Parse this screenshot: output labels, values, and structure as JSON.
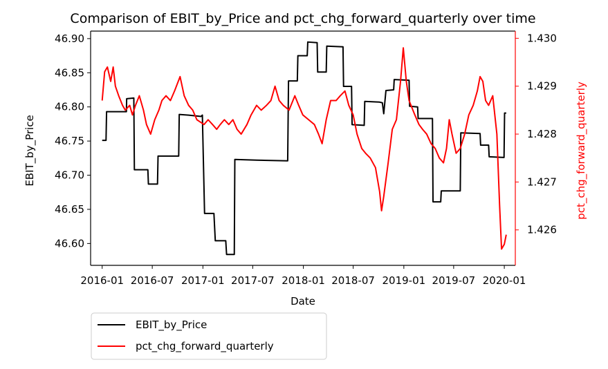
{
  "chart_data": {
    "type": "line",
    "title": "Comparison of EBIT_by_Price and pct_chg_forward_quarterly over time",
    "xlabel": "Date",
    "ylabel_left": "EBIT_by_Price",
    "ylabel_right": "pct_chg_forward_quarterly",
    "x_ticks": [
      "2016-01",
      "2016-07",
      "2017-01",
      "2017-07",
      "2018-01",
      "2018-07",
      "2019-01",
      "2019-07",
      "2020-01"
    ],
    "x_range": [
      "2015-11-20",
      "2020-02-10"
    ],
    "y_left_ticks": [
      "46.60",
      "46.65",
      "46.70",
      "46.75",
      "46.80",
      "46.85",
      "46.90"
    ],
    "y_left_range": [
      46.568,
      46.911
    ],
    "y_right_ticks": [
      "1.426",
      "1.427",
      "1.428",
      "1.429",
      "1.430"
    ],
    "y_right_range": [
      1.42526,
      1.43015
    ],
    "legend": {
      "placement": "bottom-left-outside",
      "entries": [
        "EBIT_by_Price",
        "pct_chg_forward_quarterly"
      ]
    },
    "colors": {
      "series1": "#000000",
      "series2": "#ff0000",
      "axis": "#000000"
    },
    "series": [
      {
        "name": "EBIT_by_Price",
        "axis": "left",
        "color": "#000000",
        "points": [
          [
            "2016-01-01",
            46.751
          ],
          [
            "2016-01-15",
            46.751
          ],
          [
            "2016-01-17",
            46.793
          ],
          [
            "2016-03-15",
            46.793
          ],
          [
            "2016-03-29",
            46.793
          ],
          [
            "2016-03-30",
            46.812
          ],
          [
            "2016-04-25",
            46.813
          ],
          [
            "2016-04-27",
            46.708
          ],
          [
            "2016-06-15",
            46.708
          ],
          [
            "2016-06-17",
            46.687
          ],
          [
            "2016-07-20",
            46.687
          ],
          [
            "2016-07-22",
            46.728
          ],
          [
            "2016-10-05",
            46.728
          ],
          [
            "2016-10-07",
            46.789
          ],
          [
            "2016-11-10",
            46.788
          ],
          [
            "2016-12-25",
            46.786
          ],
          [
            "2016-12-30",
            46.788
          ],
          [
            "2017-01-07",
            46.644
          ],
          [
            "2017-02-10",
            46.644
          ],
          [
            "2017-02-15",
            46.604
          ],
          [
            "2017-03-25",
            46.604
          ],
          [
            "2017-03-28",
            46.584
          ],
          [
            "2017-04-25",
            46.584
          ],
          [
            "2017-04-27",
            46.723
          ],
          [
            "2017-07-15",
            46.722
          ],
          [
            "2017-11-05",
            46.721
          ],
          [
            "2017-11-08",
            46.838
          ],
          [
            "2017-12-10",
            46.838
          ],
          [
            "2017-12-12",
            46.875
          ],
          [
            "2018-01-15",
            46.875
          ],
          [
            "2018-01-17",
            46.895
          ],
          [
            "2018-02-20",
            46.894
          ],
          [
            "2018-02-22",
            46.851
          ],
          [
            "2018-03-25",
            46.851
          ],
          [
            "2018-03-27",
            46.889
          ],
          [
            "2018-05-25",
            46.888
          ],
          [
            "2018-05-27",
            46.83
          ],
          [
            "2018-06-25",
            46.83
          ],
          [
            "2018-06-27",
            46.774
          ],
          [
            "2018-08-10",
            46.773
          ],
          [
            "2018-08-12",
            46.808
          ],
          [
            "2018-10-05",
            46.807
          ],
          [
            "2018-10-15",
            46.806
          ],
          [
            "2018-10-20",
            46.79
          ],
          [
            "2018-10-28",
            46.824
          ],
          [
            "2018-11-25",
            46.825
          ],
          [
            "2018-11-27",
            46.84
          ],
          [
            "2019-01-20",
            46.839
          ],
          [
            "2019-01-22",
            46.801
          ],
          [
            "2019-02-20",
            46.8
          ],
          [
            "2019-02-22",
            46.783
          ],
          [
            "2019-04-15",
            46.783
          ],
          [
            "2019-04-17",
            46.661
          ],
          [
            "2019-05-15",
            46.661
          ],
          [
            "2019-05-17",
            46.677
          ],
          [
            "2019-07-25",
            46.677
          ],
          [
            "2019-07-27",
            46.762
          ],
          [
            "2019-10-05",
            46.761
          ],
          [
            "2019-10-07",
            46.744
          ],
          [
            "2019-11-05",
            46.744
          ],
          [
            "2019-11-07",
            46.727
          ],
          [
            "2019-12-31",
            46.726
          ],
          [
            "2020-01-02",
            46.791
          ],
          [
            "2020-01-08",
            46.791
          ]
        ]
      },
      {
        "name": "pct_chg_forward_quarterly",
        "axis": "right",
        "color": "#ff0000",
        "points": [
          [
            "2016-01-01",
            1.4287
          ],
          [
            "2016-01-10",
            1.4293
          ],
          [
            "2016-01-20",
            1.4294
          ],
          [
            "2016-02-01",
            1.4291
          ],
          [
            "2016-02-10",
            1.4294
          ],
          [
            "2016-02-18",
            1.429
          ],
          [
            "2016-03-01",
            1.4288
          ],
          [
            "2016-03-15",
            1.4286
          ],
          [
            "2016-03-25",
            1.4285
          ],
          [
            "2016-04-10",
            1.4286
          ],
          [
            "2016-04-20",
            1.4284
          ],
          [
            "2016-05-01",
            1.4286
          ],
          [
            "2016-05-15",
            1.4288
          ],
          [
            "2016-05-30",
            1.4285
          ],
          [
            "2016-06-10",
            1.4282
          ],
          [
            "2016-06-25",
            1.428
          ],
          [
            "2016-07-10",
            1.4283
          ],
          [
            "2016-07-25",
            1.4285
          ],
          [
            "2016-08-05",
            1.4287
          ],
          [
            "2016-08-20",
            1.4288
          ],
          [
            "2016-09-05",
            1.4287
          ],
          [
            "2016-09-20",
            1.4289
          ],
          [
            "2016-10-10",
            1.4292
          ],
          [
            "2016-10-25",
            1.4288
          ],
          [
            "2016-11-10",
            1.4286
          ],
          [
            "2016-11-25",
            1.4285
          ],
          [
            "2016-12-10",
            1.4283
          ],
          [
            "2017-01-05",
            1.4282
          ],
          [
            "2017-01-20",
            1.4283
          ],
          [
            "2017-02-05",
            1.4282
          ],
          [
            "2017-02-20",
            1.4281
          ],
          [
            "2017-03-05",
            1.4282
          ],
          [
            "2017-03-20",
            1.4283
          ],
          [
            "2017-04-05",
            1.4282
          ],
          [
            "2017-04-20",
            1.4283
          ],
          [
            "2017-05-05",
            1.4281
          ],
          [
            "2017-05-20",
            1.428
          ],
          [
            "2017-06-10",
            1.4282
          ],
          [
            "2017-06-25",
            1.4284
          ],
          [
            "2017-07-15",
            1.4286
          ],
          [
            "2017-08-01",
            1.4285
          ],
          [
            "2017-08-20",
            1.4286
          ],
          [
            "2017-09-05",
            1.4287
          ],
          [
            "2017-09-20",
            1.429
          ],
          [
            "2017-10-05",
            1.4287
          ],
          [
            "2017-10-20",
            1.4286
          ],
          [
            "2017-11-10",
            1.4285
          ],
          [
            "2017-12-01",
            1.4288
          ],
          [
            "2017-12-15",
            1.4286
          ],
          [
            "2017-12-30",
            1.4284
          ],
          [
            "2018-01-20",
            1.4283
          ],
          [
            "2018-02-10",
            1.4282
          ],
          [
            "2018-02-25",
            1.428
          ],
          [
            "2018-03-10",
            1.4278
          ],
          [
            "2018-03-25",
            1.4283
          ],
          [
            "2018-04-10",
            1.4287
          ],
          [
            "2018-04-30",
            1.4287
          ],
          [
            "2018-05-15",
            1.4288
          ],
          [
            "2018-06-01",
            1.4289
          ],
          [
            "2018-06-15",
            1.4286
          ],
          [
            "2018-07-01",
            1.4284
          ],
          [
            "2018-07-15",
            1.428
          ],
          [
            "2018-08-01",
            1.4277
          ],
          [
            "2018-08-15",
            1.4276
          ],
          [
            "2018-09-01",
            1.4275
          ],
          [
            "2018-09-20",
            1.4273
          ],
          [
            "2018-10-05",
            1.4268
          ],
          [
            "2018-10-12",
            1.4264
          ],
          [
            "2018-10-20",
            1.4267
          ],
          [
            "2018-11-05",
            1.4274
          ],
          [
            "2018-11-20",
            1.4281
          ],
          [
            "2018-12-05",
            1.4283
          ],
          [
            "2018-12-20",
            1.4291
          ],
          [
            "2018-12-30",
            1.4298
          ],
          [
            "2019-01-10",
            1.4291
          ],
          [
            "2019-01-20",
            1.4287
          ],
          [
            "2019-02-10",
            1.4284
          ],
          [
            "2019-02-25",
            1.4282
          ],
          [
            "2019-03-10",
            1.4281
          ],
          [
            "2019-03-25",
            1.428
          ],
          [
            "2019-04-10",
            1.4278
          ],
          [
            "2019-04-25",
            1.4277
          ],
          [
            "2019-05-10",
            1.4275
          ],
          [
            "2019-05-25",
            1.4274
          ],
          [
            "2019-06-05",
            1.4277
          ],
          [
            "2019-06-15",
            1.4283
          ],
          [
            "2019-06-25",
            1.428
          ],
          [
            "2019-07-10",
            1.4276
          ],
          [
            "2019-07-25",
            1.4277
          ],
          [
            "2019-08-10",
            1.428
          ],
          [
            "2019-08-25",
            1.4284
          ],
          [
            "2019-09-10",
            1.4286
          ],
          [
            "2019-09-25",
            1.4289
          ],
          [
            "2019-10-05",
            1.4292
          ],
          [
            "2019-10-15",
            1.4291
          ],
          [
            "2019-10-25",
            1.4287
          ],
          [
            "2019-11-05",
            1.4286
          ],
          [
            "2019-11-20",
            1.4288
          ],
          [
            "2019-12-05",
            1.428
          ],
          [
            "2019-12-15",
            1.4265
          ],
          [
            "2019-12-22",
            1.4256
          ],
          [
            "2020-01-01",
            1.4257
          ],
          [
            "2020-01-08",
            1.4259
          ]
        ]
      }
    ]
  }
}
